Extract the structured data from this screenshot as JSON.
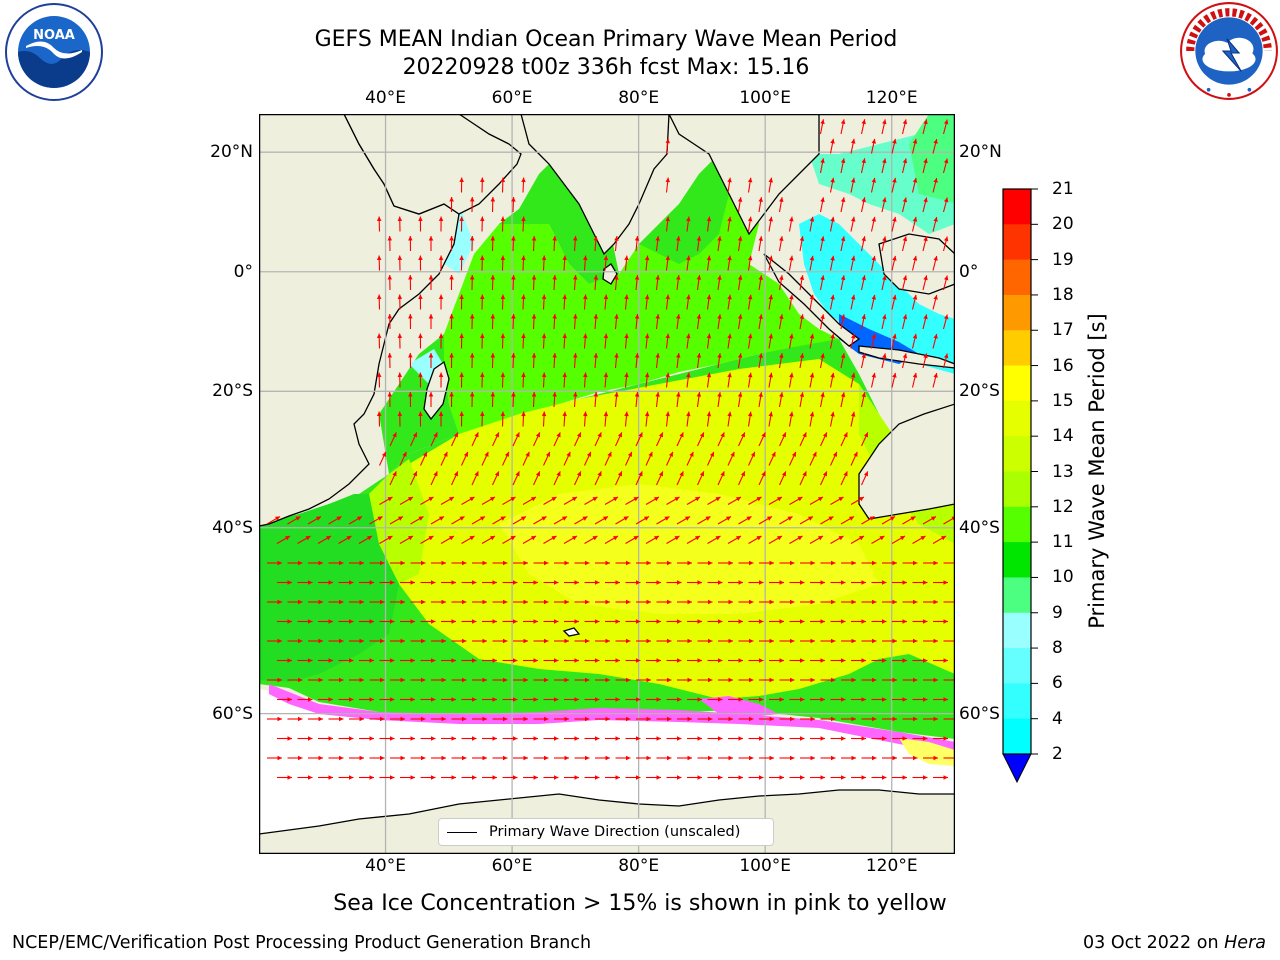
{
  "header": {
    "title_line1": "GEFS MEAN Indian Ocean Primary Wave Mean Period",
    "title_line2": "20220928 t00z 336h fcst   Max: 15.16"
  },
  "logos": {
    "noaa": {
      "text": "NOAA",
      "ring_text": "NATIONAL OCEANIC AND ATMOSPHERIC ADMINISTRATION · U.S. DEPARTMENT OF COMMERCE"
    },
    "nws": {
      "ring_text": "NATIONAL WEATHER SERVICE"
    }
  },
  "map": {
    "lon_ticks": [
      "40°E",
      "60°E",
      "80°E",
      "100°E",
      "120°E"
    ],
    "lon_values": [
      40,
      60,
      80,
      100,
      120
    ],
    "lat_ticks_left": [
      "20°N",
      "0°",
      "20°S",
      "40°S",
      "60°S"
    ],
    "lat_ticks_right": [
      "20°N",
      "0°",
      "20°S",
      "40°S",
      "60°S"
    ],
    "lat_values": [
      20,
      0,
      -20,
      -40,
      -60
    ],
    "extent": {
      "lon_min": 20,
      "lon_max": 130,
      "lat_min": -70,
      "lat_max": 26
    },
    "projection": "mercator",
    "grid": true,
    "colors": {
      "land": "#efefdd",
      "coast": "#000000",
      "grid": "#b4b4b4",
      "arrow": "#ff0000",
      "ice_pink": "#ff66ff",
      "ice_yellow": "#ffff66"
    },
    "legend_label": "Primary Wave Direction (unscaled)"
  },
  "colorbar": {
    "title": "Primary Wave Mean Period [s]",
    "labels": [
      "2",
      "4",
      "6",
      "8",
      "9",
      "10",
      "11",
      "12",
      "13",
      "14",
      "15",
      "16",
      "17",
      "18",
      "19",
      "20",
      "21"
    ],
    "colors": [
      "#0066ff",
      "#00ffff",
      "#33ffff",
      "#66ffff",
      "#99ffff",
      "#4dff80",
      "#00e600",
      "#55ff00",
      "#aaff00",
      "#ccff00",
      "#e6ff00",
      "#ffff00",
      "#ffcc00",
      "#ff9900",
      "#ff6600",
      "#ff3300",
      "#ff0000"
    ],
    "under_color": "#0000ff"
  },
  "notes": {
    "sea_ice": "Sea Ice Concentration > 15% is shown in pink to yellow"
  },
  "footer": {
    "left": "NCEP/EMC/Verification Post Processing Product Generation Branch",
    "date": "03 Oct 2022 on",
    "machine": "Hera"
  }
}
